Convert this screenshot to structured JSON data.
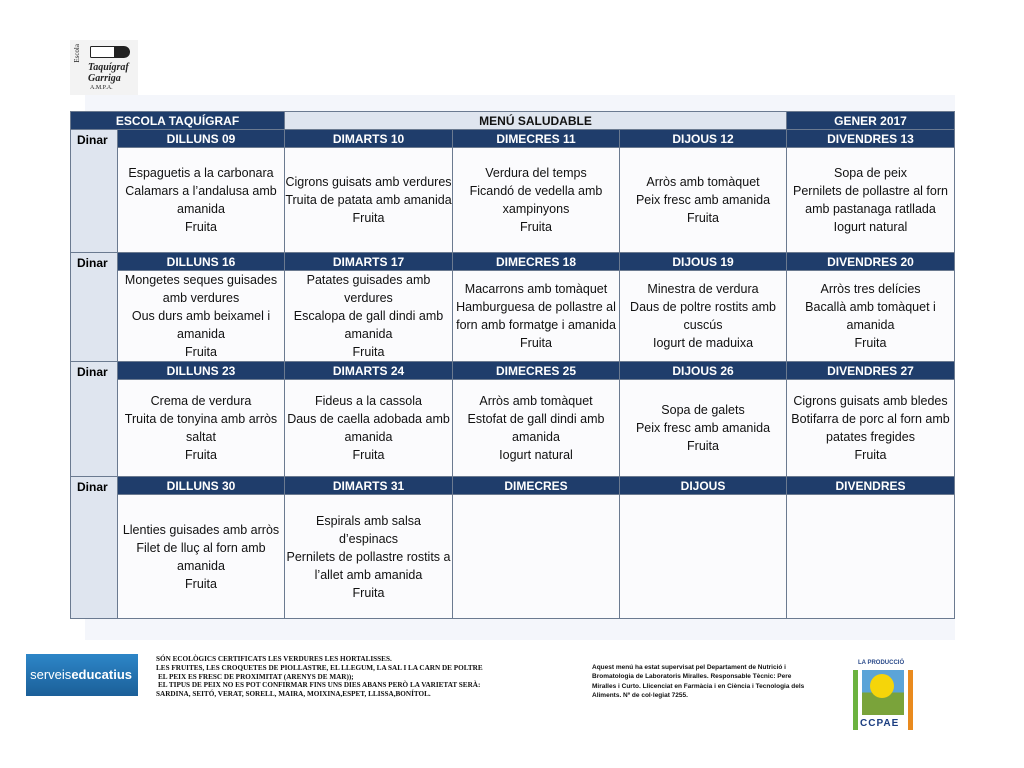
{
  "logo": {
    "text": [
      "Escola",
      "Taquígraf",
      "Garriga",
      "A.M.P.A."
    ]
  },
  "header": {
    "school": "ESCOLA TAQUÍGRAF",
    "title": "MENÚ SALUDABLE",
    "month": "GENER 2017"
  },
  "row_label": "Dinar",
  "weeks": [
    {
      "days": [
        "DILLUNS 09",
        "DIMARTS 10",
        "DIMECRES 11",
        "DIJOUS 12",
        "DIVENDRES 13"
      ],
      "meals": [
        [
          "Espaguetis a la carbonara",
          "Calamars a l’andalusa amb amanida",
          "Fruita"
        ],
        [
          "Cigrons guisats amb verdures",
          "Truita de patata amb amanida",
          "Fruita"
        ],
        [
          "Verdura del temps",
          "Ficandó de vedella amb xampinyons",
          "Fruita"
        ],
        [
          "Arròs amb tomàquet",
          "Peix fresc amb amanida",
          "Fruita"
        ],
        [
          "Sopa de peix",
          "Pernilets de pollastre al forn amb pastanaga ratllada",
          "Iogurt natural"
        ]
      ]
    },
    {
      "days": [
        "DILLUNS 16",
        "DIMARTS 17",
        "DIMECRES 18",
        "DIJOUS 19",
        "DIVENDRES 20"
      ],
      "meals": [
        [
          "Mongetes seques guisades amb verdures",
          "Ous durs amb beixamel i amanida",
          "Fruita"
        ],
        [
          "Patates guisades amb verdures",
          "Escalopa de gall dindi amb amanida",
          "Fruita"
        ],
        [
          "Macarrons amb tomàquet",
          "Hamburguesa de pollastre al forn amb formatge i amanida",
          "Fruita"
        ],
        [
          "Minestra de verdura",
          "Daus de poltre rostits amb cuscús",
          "Iogurt de maduixa"
        ],
        [
          "Arròs tres delícies",
          "Bacallà amb tomàquet i amanida",
          "Fruita"
        ]
      ]
    },
    {
      "days": [
        "DILLUNS 23",
        "DIMARTS 24",
        "DIMECRES 25",
        "DIJOUS 26",
        "DIVENDRES 27"
      ],
      "meals": [
        [
          "Crema de verdura",
          "Truita de tonyina amb arròs saltat",
          "Fruita"
        ],
        [
          "Fideus a la cassola",
          "Daus de caella adobada amb amanida",
          "Fruita"
        ],
        [
          "Arròs amb tomàquet",
          "Estofat de gall dindi amb amanida",
          "Iogurt natural"
        ],
        [
          "Sopa de galets",
          "Peix fresc amb amanida",
          "Fruita"
        ],
        [
          "Cigrons guisats amb bledes",
          "Botifarra de porc al forn amb patates fregides",
          "Fruita"
        ]
      ]
    },
    {
      "days": [
        "DILLUNS 30",
        "DIMARTS 31",
        "DIMECRES",
        "DIJOUS",
        "DIVENDRES"
      ],
      "meals": [
        [
          "Llenties guisades amb arròs",
          "Filet de lluç al forn amb amanida",
          "Fruita"
        ],
        [
          "Espirals amb salsa d’espinacs",
          "Pernilets de pollastre rostits a l’allet amb amanida",
          "Fruita"
        ],
        [],
        [],
        []
      ]
    }
  ],
  "footer": {
    "serveis_logo": [
      "serveis",
      "educatius"
    ],
    "notes": [
      "SÓN ECOLÒGICS CERTIFICATS LES VERDURES LES HORTALISSES.",
      "LES FRUITES, LES CROQUETES DE PIOLLASTRE, EL LLEGUM, LA SAL I LA CARN DE POLTRE",
      "EL PEIX ES FRESC DE PROXIMITAT (ARENYS DE MAR));",
      "EL TIPUS DE PEIX NO ES POT CONFIRMAR FINS UNS DIES ABANS PERÒ LA VARIETAT SERÀ:",
      "SARDINA, SEITÓ, VERAT, SORELL, MAIRA, MOIXINA,ESPET, LLISSA,BONÍTOL."
    ],
    "supervision": "Aquest menú ha estat supervisat pel Departament de Nutrició i Bromatologia de Laboratoris Miralles. Responsable Tècnic: Pere Miralles i Curto. Llicenciat en Farmàcia i en Ciència i Tecnologia dels Aliments. Nº de col·legiat 7255.",
    "ccpae_logo": {
      "top": "LA PRODUCCIÓ",
      "name": "CCPAE"
    }
  },
  "colors": {
    "header_dark": "#1f3d6b",
    "header_light": "#dfe5ef"
  }
}
